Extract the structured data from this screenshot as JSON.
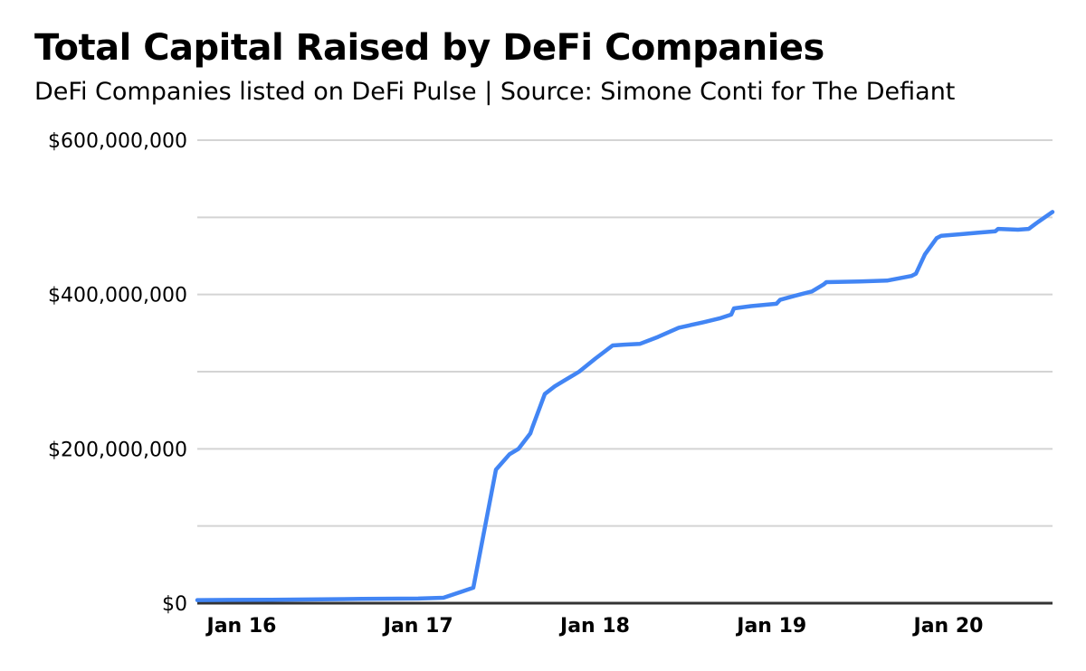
{
  "header": {
    "title": "Total Capital Raised by DeFi Companies",
    "subtitle": "DeFi Companies listed on DeFi Pulse | Source: Simone Conti for The Defiant"
  },
  "colors": {
    "line": "#4285f4",
    "gridline": "#d4d4d4",
    "axis_baseline": "#333333",
    "text": "#000000",
    "background": "#ffffff"
  },
  "chart_data": {
    "type": "line",
    "title": "Total Capital Raised by DeFi Companies",
    "subtitle": "DeFi Companies listed on DeFi Pulse | Source: Simone Conti for The Defiant",
    "series_name": "Total capital raised (USD, cumulative)",
    "xlabel": "",
    "ylabel": "",
    "ylim": [
      0,
      600000000
    ],
    "xlim": [
      2015.75,
      2020.59
    ],
    "grid": "horizontal only, minor line every $100,000,000, labels every $200,000,000",
    "legend": "none",
    "y_ticks": [
      {
        "value": 0,
        "label": "$0"
      },
      {
        "value": 200000000,
        "label": "$200,000,000"
      },
      {
        "value": 400000000,
        "label": "$400,000,000"
      },
      {
        "value": 600000000,
        "label": "$600,000,000"
      }
    ],
    "y_minor_gridline_step": 100000000,
    "x_ticks": [
      {
        "value": 2016,
        "label": "Jan 16"
      },
      {
        "value": 2017,
        "label": "Jan 17"
      },
      {
        "value": 2018,
        "label": "Jan 18"
      },
      {
        "value": 2019,
        "label": "Jan 19"
      },
      {
        "value": 2020,
        "label": "Jan 20"
      }
    ],
    "points": [
      {
        "date": "Oct 2015",
        "x": 2015.749,
        "value": 4000000
      },
      {
        "date": "Mar 2016",
        "x": 2016.169,
        "value": 4500000
      },
      {
        "date": "Sep 2016",
        "x": 2016.681,
        "value": 5500000
      },
      {
        "date": "Jan 2017",
        "x": 2016.999,
        "value": 6000000
      },
      {
        "date": "Feb 2017",
        "x": 2017.142,
        "value": 7000000
      },
      {
        "date": "Apr 2017",
        "x": 2017.311,
        "value": 20000000
      },
      {
        "date": "Jun 2017",
        "x": 2017.439,
        "value": 173000000
      },
      {
        "date": "Jul 2017",
        "x": 2017.516,
        "value": 193000000
      },
      {
        "date": "Jul 2017",
        "x": 2017.567,
        "value": 200000000
      },
      {
        "date": "Aug 2017",
        "x": 2017.634,
        "value": 220000000
      },
      {
        "date": "Aug 2017",
        "x": 2017.644,
        "value": 227000000
      },
      {
        "date": "Sep 2017",
        "x": 2017.716,
        "value": 271000000
      },
      {
        "date": "Oct 2017",
        "x": 2017.772,
        "value": 281000000
      },
      {
        "date": "Oct 2017",
        "x": 2017.823,
        "value": 288000000
      },
      {
        "date": "Dec 2017",
        "x": 2017.91,
        "value": 300000000
      },
      {
        "date": "Jan 2018",
        "x": 2018.002,
        "value": 317000000
      },
      {
        "date": "Feb 2018",
        "x": 2018.1,
        "value": 334000000
      },
      {
        "date": "Mar 2018",
        "x": 2018.166,
        "value": 335000000
      },
      {
        "date": "Apr 2018",
        "x": 2018.253,
        "value": 336000000
      },
      {
        "date": "May 2018",
        "x": 2018.356,
        "value": 345000000
      },
      {
        "date": "Jun 2018",
        "x": 2018.474,
        "value": 357000000
      },
      {
        "date": "Aug 2018",
        "x": 2018.612,
        "value": 364000000
      },
      {
        "date": "Sep 2018",
        "x": 2018.704,
        "value": 369000000
      },
      {
        "date": "Oct 2018",
        "x": 2018.771,
        "value": 374000000
      },
      {
        "date": "Oct 2018",
        "x": 2018.786,
        "value": 382000000
      },
      {
        "date": "Nov 2018",
        "x": 2018.883,
        "value": 385000000
      },
      {
        "date": "Jan 2019",
        "x": 2019.027,
        "value": 388000000
      },
      {
        "date": "Jan 2019",
        "x": 2019.047,
        "value": 393000000
      },
      {
        "date": "Feb 2019",
        "x": 2019.124,
        "value": 398000000
      },
      {
        "date": "Mar 2019",
        "x": 2019.227,
        "value": 404000000
      },
      {
        "date": "Apr 2019",
        "x": 2019.293,
        "value": 413000000
      },
      {
        "date": "Apr 2019",
        "x": 2019.309,
        "value": 416000000
      },
      {
        "date": "Jul 2019",
        "x": 2019.498,
        "value": 417000000
      },
      {
        "date": "Aug 2019",
        "x": 2019.652,
        "value": 418000000
      },
      {
        "date": "Oct 2019",
        "x": 2019.79,
        "value": 424000000
      },
      {
        "date": "Oct 2019",
        "x": 2019.816,
        "value": 427000000
      },
      {
        "date": "Nov 2019",
        "x": 2019.867,
        "value": 452000000
      },
      {
        "date": "Dec 2019",
        "x": 2019.933,
        "value": 473000000
      },
      {
        "date": "Dec 2019",
        "x": 2019.959,
        "value": 476000000
      },
      {
        "date": "Jan 2020",
        "x": 2020.061,
        "value": 478000000
      },
      {
        "date": "Feb 2020",
        "x": 2020.164,
        "value": 480000000
      },
      {
        "date": "Apr 2020",
        "x": 2020.266,
        "value": 482000000
      },
      {
        "date": "Apr 2020",
        "x": 2020.281,
        "value": 485000000
      },
      {
        "date": "May 2020",
        "x": 2020.394,
        "value": 484000000
      },
      {
        "date": "Jun 2020",
        "x": 2020.455,
        "value": 485000000
      },
      {
        "date": "Jul 2020",
        "x": 2020.507,
        "value": 494000000
      },
      {
        "date": "Aug 2020",
        "x": 2020.589,
        "value": 507000000
      }
    ]
  }
}
